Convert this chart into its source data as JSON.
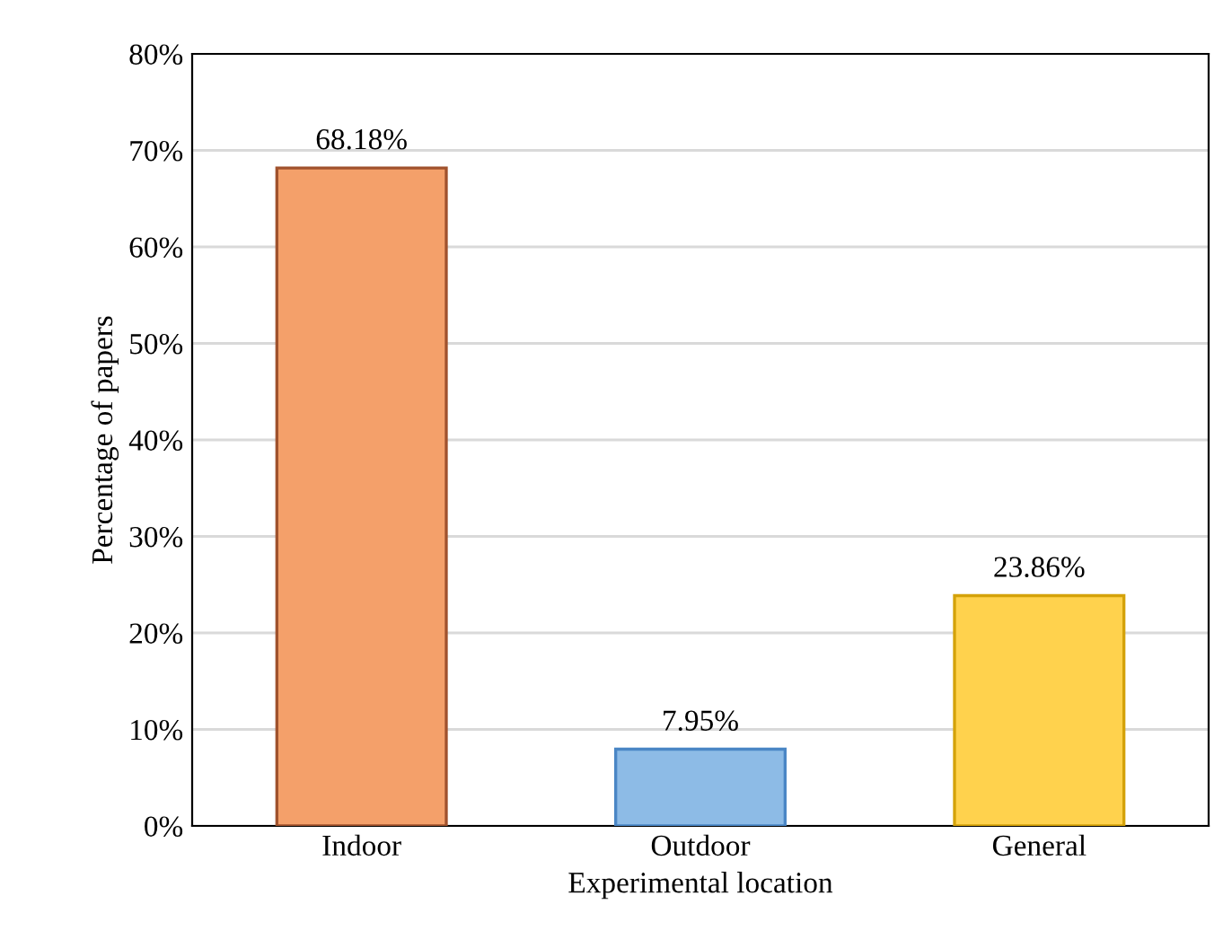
{
  "chart_data": {
    "type": "bar",
    "xlabel": "Experimental location",
    "ylabel": "Percentage of papers",
    "categories": [
      "Indoor",
      "Outdoor",
      "General"
    ],
    "values": [
      68.18,
      7.95,
      23.86
    ],
    "colors": [
      "#f4a06a",
      "#8dbbe6",
      "#ffd24d"
    ],
    "value_labels": [
      "68.18%",
      "7.95%",
      "23.86%"
    ],
    "ylim": [
      0,
      80
    ],
    "yticks": [
      {
        "value": 0,
        "label": "0%"
      },
      {
        "value": 10,
        "label": "10%"
      },
      {
        "value": 20,
        "label": "20%"
      },
      {
        "value": 30,
        "label": "30%"
      },
      {
        "value": 40,
        "label": "40%"
      },
      {
        "value": 50,
        "label": "50%"
      },
      {
        "value": 60,
        "label": "60%"
      },
      {
        "value": 70,
        "label": "70%"
      },
      {
        "value": 80,
        "label": "80%"
      }
    ],
    "grid": "y"
  }
}
